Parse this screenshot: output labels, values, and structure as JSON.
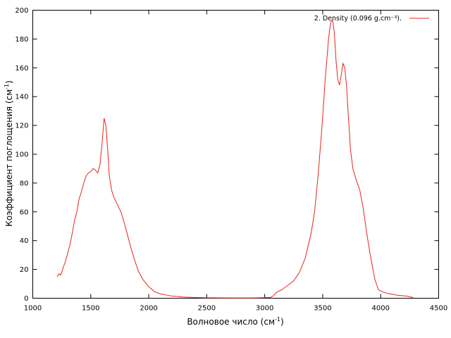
{
  "chart_data": {
    "type": "line",
    "xlabel": "Волновое число (см",
    "xlabel_sup": "-1",
    "xlabel_end": ")",
    "ylabel": "Коэффициент поглощения (см",
    "ylabel_sup": "-1",
    "ylabel_end": ")",
    "xlim": [
      1000,
      4500
    ],
    "ylim": [
      0,
      200
    ],
    "xticks": [
      1000,
      1500,
      2000,
      2500,
      3000,
      3500,
      4000,
      4500
    ],
    "yticks": [
      0,
      20,
      40,
      60,
      80,
      100,
      120,
      140,
      160,
      180,
      200
    ],
    "legend_position": "top-right",
    "series": [
      {
        "name": "2. Density (0.096 g.cm⁻³).",
        "color": "#e8251d",
        "x": [
          1210,
          1225,
          1240,
          1250,
          1265,
          1280,
          1300,
          1320,
          1340,
          1360,
          1380,
          1400,
          1420,
          1440,
          1460,
          1480,
          1500,
          1520,
          1540,
          1560,
          1580,
          1600,
          1615,
          1630,
          1645,
          1660,
          1680,
          1700,
          1730,
          1760,
          1790,
          1820,
          1850,
          1880,
          1910,
          1950,
          2000,
          2050,
          2100,
          2200,
          2300,
          2400,
          2500,
          2700,
          2900,
          3050,
          3080,
          3100,
          3150,
          3200,
          3250,
          3300,
          3350,
          3400,
          3430,
          3460,
          3490,
          3520,
          3550,
          3570,
          3585,
          3600,
          3615,
          3630,
          3645,
          3660,
          3675,
          3690,
          3705,
          3720,
          3740,
          3760,
          3790,
          3820,
          3850,
          3880,
          3910,
          3950,
          3980,
          4000,
          4030,
          4080,
          4150,
          4220,
          4280
        ],
        "values": [
          15,
          17,
          16,
          18,
          22,
          25,
          31,
          37,
          45,
          54,
          60,
          69,
          74,
          80,
          85,
          87,
          88,
          90,
          89,
          87,
          93,
          110,
          125,
          120,
          104,
          85,
          75,
          70,
          65,
          60,
          52,
          43,
          34,
          26,
          19,
          13,
          8,
          4.5,
          3,
          1.5,
          0.8,
          0.5,
          0.3,
          0.2,
          0.2,
          0.5,
          2,
          4,
          6,
          9,
          12,
          18,
          28,
          45,
          60,
          85,
          115,
          150,
          180,
          192,
          193,
          185,
          165,
          152,
          148,
          155,
          163,
          160,
          148,
          128,
          103,
          90,
          82,
          75,
          62,
          45,
          30,
          13,
          6,
          5,
          4,
          3,
          2,
          1.5,
          0.5
        ]
      }
    ]
  }
}
